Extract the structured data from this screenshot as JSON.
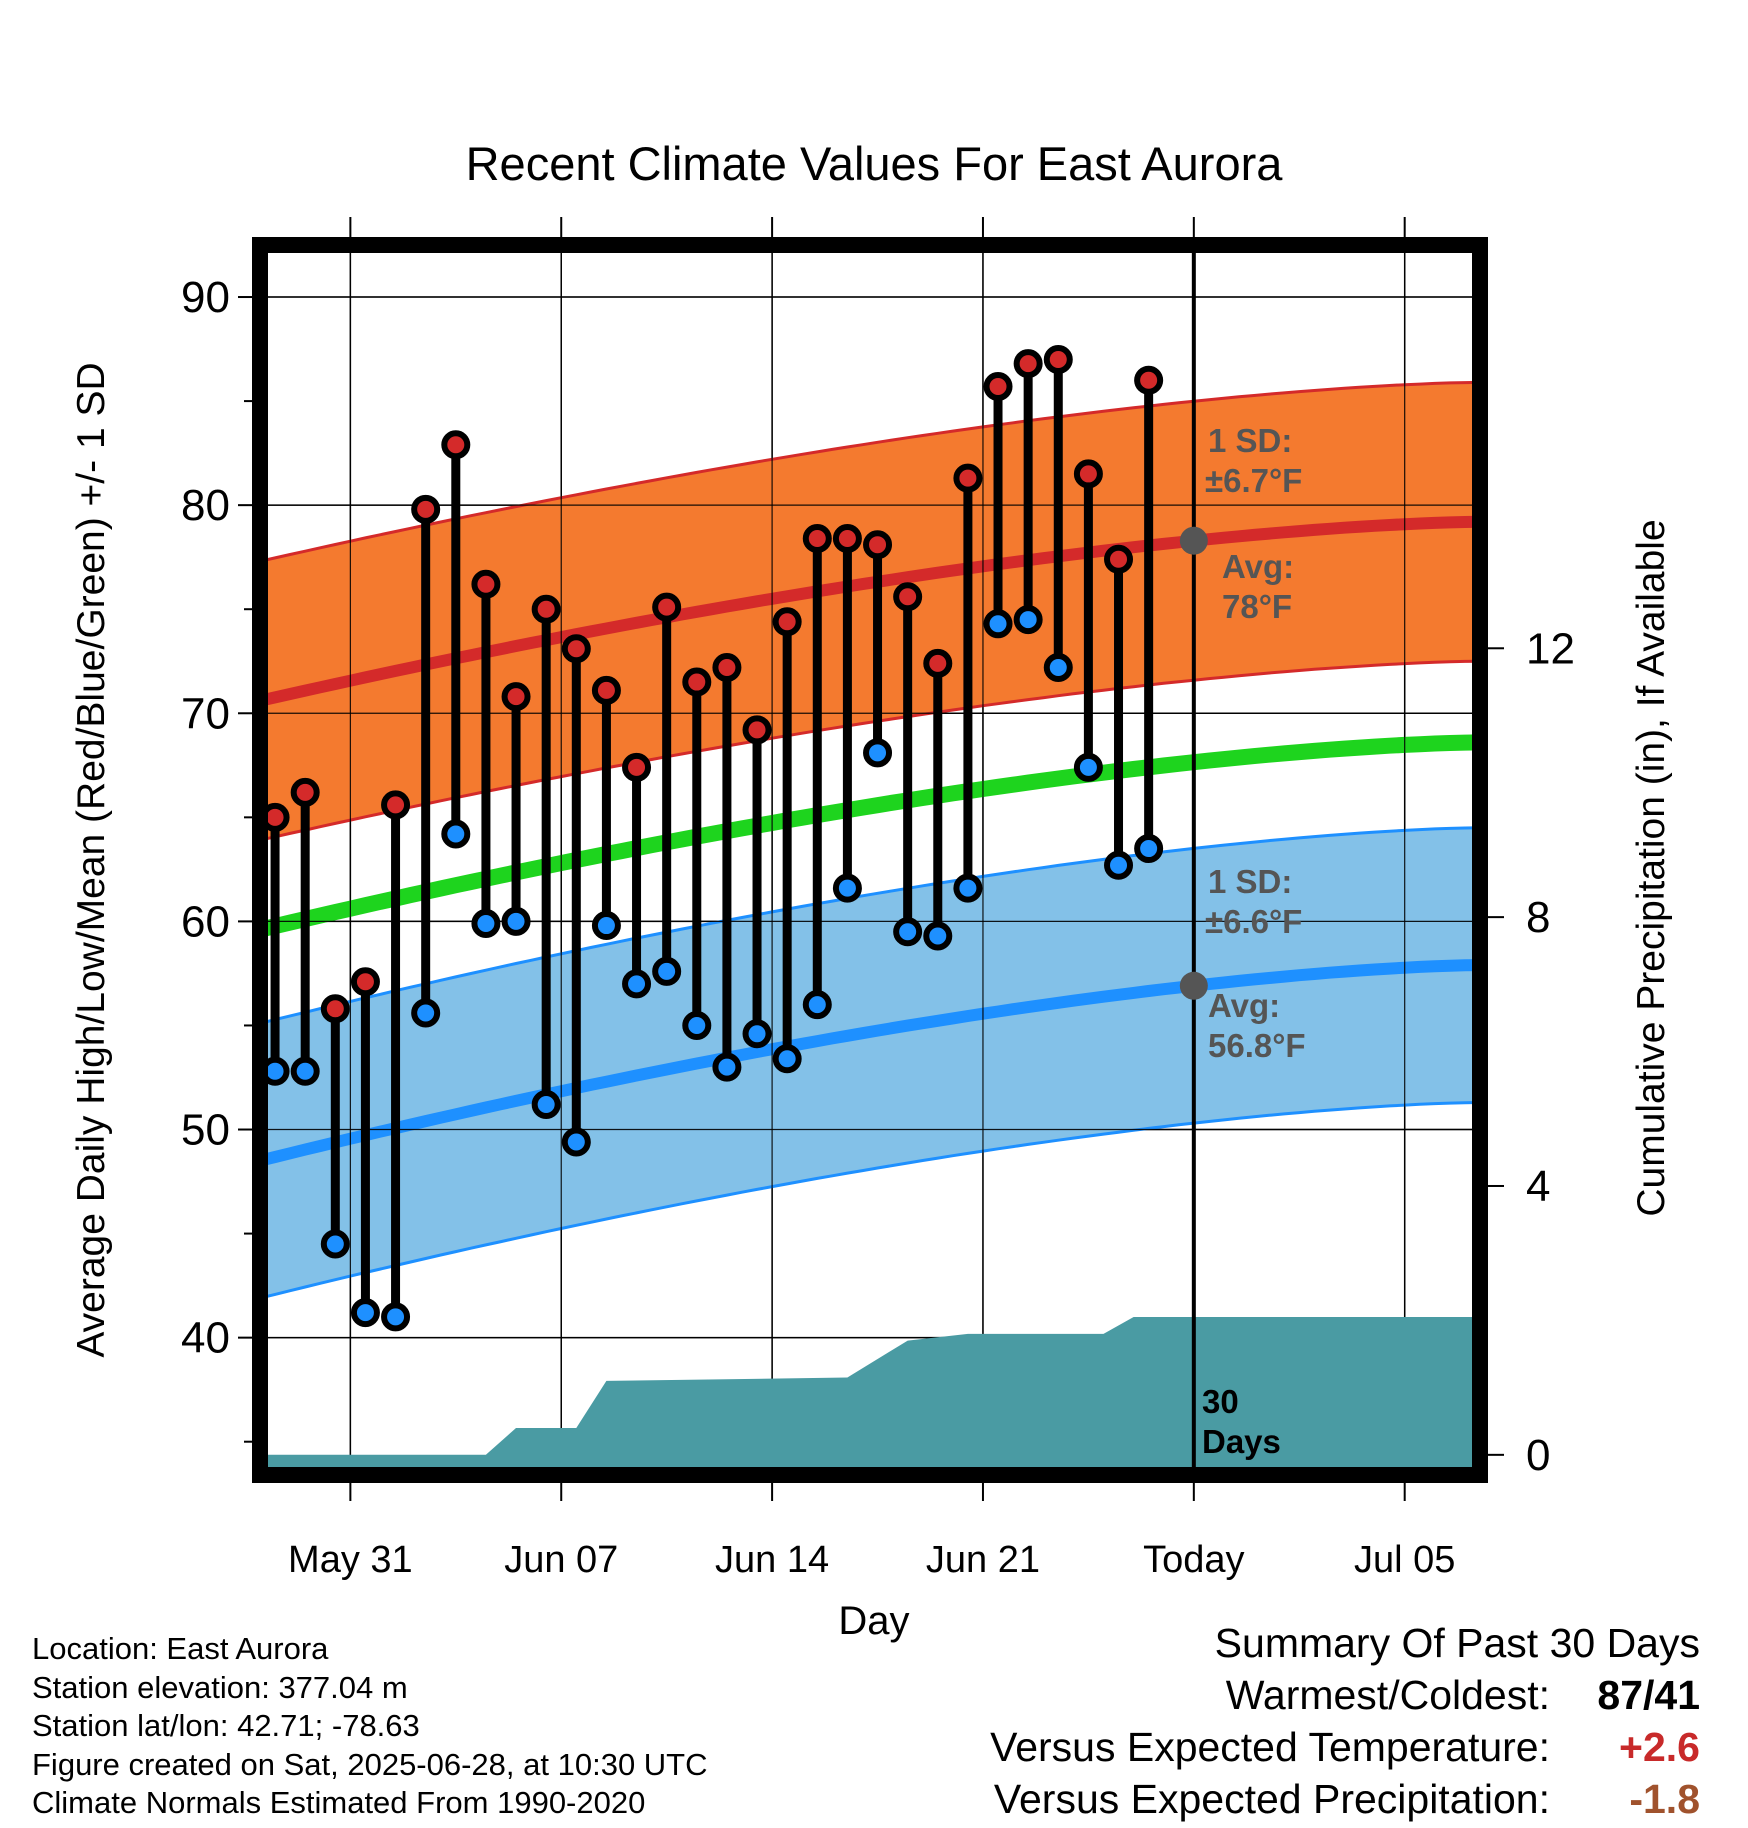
{
  "chart_data": {
    "type": "line",
    "title": "Recent Climate Values For East Aurora",
    "xlabel": "Day",
    "ylabel": "Average Daily High/Low/Mean (Red/Blue/Green) +/- 1 SD",
    "y2label": "Cumulative Precipitation (in), If Available",
    "ylim": [
      33.4,
      92.5
    ],
    "y2lim": [
      -0.3,
      18.0
    ],
    "yticks": [
      40,
      50,
      60,
      70,
      80,
      90
    ],
    "y2ticks": [
      0,
      4,
      8,
      12
    ],
    "xrange_days": [
      "May 28",
      "Jul 08"
    ],
    "xtick_labels": [
      "May 31",
      "Jun 07",
      "Jun 14",
      "Jun 21",
      "Today",
      "Jul 05"
    ],
    "today": "Jun 28",
    "days": [
      "May 29",
      "May 30",
      "May 31",
      "Jun 01",
      "Jun 02",
      "Jun 03",
      "Jun 04",
      "Jun 05",
      "Jun 06",
      "Jun 07",
      "Jun 08",
      "Jun 09",
      "Jun 10",
      "Jun 11",
      "Jun 12",
      "Jun 13",
      "Jun 14",
      "Jun 15",
      "Jun 16",
      "Jun 17",
      "Jun 18",
      "Jun 19",
      "Jun 20",
      "Jun 21",
      "Jun 22",
      "Jun 23",
      "Jun 24",
      "Jun 25",
      "Jun 26",
      "Jun 27"
    ],
    "series": [
      {
        "name": "High",
        "color": "#d42a2a",
        "values": [
          65.0,
          66.2,
          55.8,
          57.1,
          65.6,
          79.8,
          82.9,
          76.2,
          70.8,
          75.0,
          73.1,
          71.1,
          67.4,
          75.1,
          71.5,
          72.2,
          69.2,
          74.4,
          78.4,
          78.4,
          78.1,
          75.6,
          72.4,
          81.3,
          85.7,
          86.8,
          87.0,
          81.5,
          77.4,
          86.0
        ]
      },
      {
        "name": "Low",
        "color": "#1e90ff",
        "values": [
          52.8,
          52.8,
          44.5,
          41.2,
          41.0,
          55.6,
          64.2,
          59.9,
          60.0,
          51.2,
          49.4,
          59.8,
          57.0,
          57.6,
          55.0,
          53.0,
          54.6,
          53.4,
          56.0,
          61.6,
          68.1,
          59.5,
          59.3,
          61.6,
          74.3,
          74.5,
          72.2,
          67.4,
          62.7,
          63.5
        ]
      }
    ],
    "normals": {
      "high": {
        "label": "Avg:",
        "value": "78°F",
        "start": 70.6,
        "end": 79.2,
        "sd": 6.7,
        "sd_label": "1 SD:",
        "sd_text": "±6.7°F"
      },
      "low": {
        "label": "Avg:",
        "value": "56.8°F",
        "start": 48.5,
        "end": 57.9,
        "sd": 6.6,
        "sd_label": "1 SD:",
        "sd_text": "±6.6°F"
      },
      "mean": {
        "start": 59.6,
        "end": 68.6
      }
    },
    "precipitation": {
      "label_line1": "30",
      "label_line2": "Days",
      "cumulative_in": [
        [
          0,
          0
        ],
        [
          7.5,
          0
        ],
        [
          8.5,
          0.4
        ],
        [
          10.5,
          0.4
        ],
        [
          11.5,
          1.1
        ],
        [
          19.5,
          1.15
        ],
        [
          21.5,
          1.7
        ],
        [
          23.5,
          1.8
        ],
        [
          28,
          1.8
        ],
        [
          29,
          2.05
        ],
        [
          40.5,
          2.05
        ]
      ]
    },
    "colors": {
      "high_band": "#f47a2f",
      "high_line": "#d42a2a",
      "low_band": "#83c1e8",
      "low_line": "#1e90ff",
      "mean_line": "#1ed41e",
      "precip": "#4a9ba3",
      "annot": "#555555"
    },
    "grid": true
  },
  "footer": {
    "location": "Location: East Aurora",
    "elevation": "Station elevation: 377.04 m",
    "latlon": "Station lat/lon: 42.71; -78.63",
    "created": "Figure created on Sat, 2025-06-28, at 10:30 UTC",
    "normals": "Climate Normals Estimated From 1990-2020"
  },
  "summary": {
    "title": "Summary Of Past 30 Days",
    "warm_cold_label": "Warmest/Coldest:",
    "warm_cold_value": "87/41",
    "temp_label": "Versus Expected Temperature:",
    "temp_value": "+2.6",
    "temp_color": "#c82a2a",
    "precip_label": "Versus Expected Precipitation:",
    "precip_value": "-1.8",
    "precip_color": "#a0522d"
  }
}
